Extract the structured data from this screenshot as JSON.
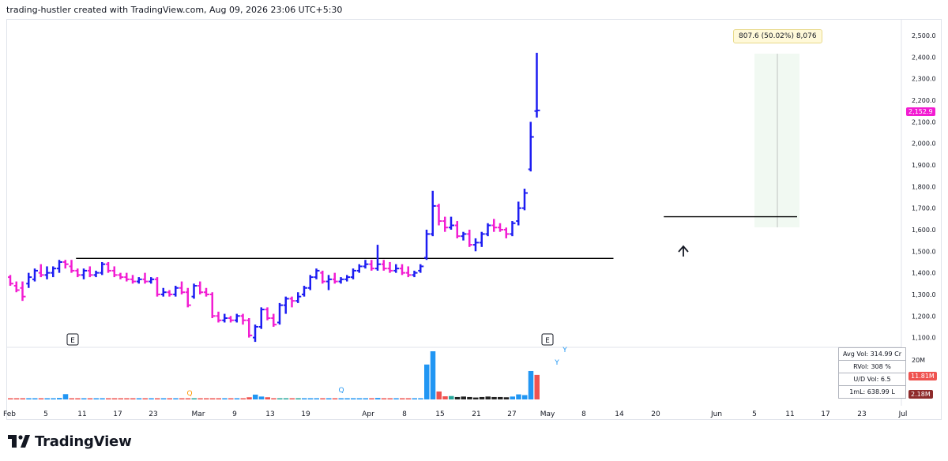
{
  "header": {
    "credit": "trading-hustler created with TradingView.com, Aug 09, 2026 23:06 UTC+5:30"
  },
  "brand": {
    "name": "TradingView"
  },
  "colors": {
    "up": "#1d1df2",
    "down": "#f21dd2",
    "resistance": "#000000",
    "vol_up": "#2196f3",
    "vol_down": "#ef5350",
    "vol_green": "#26a69a",
    "vol_dark": "#222222",
    "marker_q": "#ff9800"
  },
  "measure": {
    "label": "807.6 (50.02%) 8,076"
  },
  "stats": [
    {
      "label": "Avg Vol: 314.99 Cr"
    },
    {
      "label": "RVol: 308 %"
    },
    {
      "label": "U/D Vol: 6.5"
    },
    {
      "label": "1mL: 638.99 L"
    }
  ],
  "price_badges": {
    "last": "2,152.9",
    "vol_a": "11.81M",
    "vol_b": "2.18M"
  },
  "volume_axis": {
    "label": "20M"
  },
  "event_markers": [
    "E",
    "E"
  ],
  "volume_markers": [
    "Q",
    "Q",
    "Y",
    "Y"
  ],
  "chart_data": {
    "type": "ohlc",
    "title": "",
    "y_axis": {
      "ticks": [
        "2,500.0",
        "2,400.0",
        "2,300.0",
        "2,200.0",
        "2,100.0",
        "2,000.0",
        "1,900.0",
        "1,800.0",
        "1,700.0",
        "1,600.0",
        "1,500.0",
        "1,400.0",
        "1,300.0",
        "1,200.0",
        "1,100.0"
      ],
      "range": [
        1060,
        2560
      ]
    },
    "x_axis": {
      "ticks": [
        "Feb",
        "5",
        "11",
        "17",
        "23",
        "Mar",
        "9",
        "13",
        "19",
        "Apr",
        "8",
        "15",
        "21",
        "27",
        "May",
        "8",
        "14",
        "20",
        "Jun",
        "5",
        "11",
        "17",
        "23",
        "Jul"
      ]
    },
    "resistance_lines": [
      {
        "from_bar": 11,
        "to_bar": 98,
        "price": 1467
      },
      {
        "from_bar": 107,
        "to_bar": 128,
        "price": 1660
      }
    ],
    "bars": [
      {
        "o": 1380,
        "h": 1390,
        "l": 1340,
        "c": 1350
      },
      {
        "o": 1340,
        "h": 1360,
        "l": 1310,
        "c": 1320
      },
      {
        "o": 1330,
        "h": 1360,
        "l": 1270,
        "c": 1290
      },
      {
        "o": 1350,
        "h": 1400,
        "l": 1330,
        "c": 1380
      },
      {
        "o": 1370,
        "h": 1420,
        "l": 1360,
        "c": 1410
      },
      {
        "o": 1400,
        "h": 1440,
        "l": 1380,
        "c": 1390
      },
      {
        "o": 1390,
        "h": 1430,
        "l": 1370,
        "c": 1400
      },
      {
        "o": 1400,
        "h": 1430,
        "l": 1380,
        "c": 1420
      },
      {
        "o": 1420,
        "h": 1460,
        "l": 1400,
        "c": 1450
      },
      {
        "o": 1450,
        "h": 1460,
        "l": 1420,
        "c": 1440
      },
      {
        "o": 1430,
        "h": 1460,
        "l": 1400,
        "c": 1410
      },
      {
        "o": 1410,
        "h": 1420,
        "l": 1380,
        "c": 1390
      },
      {
        "o": 1390,
        "h": 1420,
        "l": 1370,
        "c": 1410
      },
      {
        "o": 1410,
        "h": 1430,
        "l": 1380,
        "c": 1390
      },
      {
        "o": 1390,
        "h": 1410,
        "l": 1380,
        "c": 1400
      },
      {
        "o": 1400,
        "h": 1450,
        "l": 1390,
        "c": 1440
      },
      {
        "o": 1440,
        "h": 1450,
        "l": 1400,
        "c": 1410
      },
      {
        "o": 1410,
        "h": 1430,
        "l": 1380,
        "c": 1390
      },
      {
        "o": 1390,
        "h": 1400,
        "l": 1370,
        "c": 1380
      },
      {
        "o": 1380,
        "h": 1400,
        "l": 1360,
        "c": 1370
      },
      {
        "o": 1370,
        "h": 1390,
        "l": 1350,
        "c": 1360
      },
      {
        "o": 1360,
        "h": 1380,
        "l": 1350,
        "c": 1370
      },
      {
        "o": 1370,
        "h": 1400,
        "l": 1350,
        "c": 1360
      },
      {
        "o": 1360,
        "h": 1380,
        "l": 1350,
        "c": 1370
      },
      {
        "o": 1370,
        "h": 1380,
        "l": 1290,
        "c": 1300
      },
      {
        "o": 1300,
        "h": 1330,
        "l": 1290,
        "c": 1310
      },
      {
        "o": 1310,
        "h": 1320,
        "l": 1290,
        "c": 1300
      },
      {
        "o": 1300,
        "h": 1340,
        "l": 1290,
        "c": 1330
      },
      {
        "o": 1330,
        "h": 1360,
        "l": 1300,
        "c": 1310
      },
      {
        "o": 1310,
        "h": 1330,
        "l": 1240,
        "c": 1250
      },
      {
        "o": 1290,
        "h": 1350,
        "l": 1280,
        "c": 1340
      },
      {
        "o": 1340,
        "h": 1360,
        "l": 1300,
        "c": 1310
      },
      {
        "o": 1310,
        "h": 1330,
        "l": 1290,
        "c": 1300
      },
      {
        "o": 1300,
        "h": 1310,
        "l": 1190,
        "c": 1200
      },
      {
        "o": 1200,
        "h": 1220,
        "l": 1170,
        "c": 1180
      },
      {
        "o": 1180,
        "h": 1210,
        "l": 1170,
        "c": 1190
      },
      {
        "o": 1190,
        "h": 1200,
        "l": 1170,
        "c": 1180
      },
      {
        "o": 1180,
        "h": 1210,
        "l": 1170,
        "c": 1200
      },
      {
        "o": 1200,
        "h": 1210,
        "l": 1160,
        "c": 1180
      },
      {
        "o": 1180,
        "h": 1190,
        "l": 1100,
        "c": 1110
      },
      {
        "o": 1100,
        "h": 1160,
        "l": 1080,
        "c": 1150
      },
      {
        "o": 1150,
        "h": 1240,
        "l": 1140,
        "c": 1230
      },
      {
        "o": 1230,
        "h": 1240,
        "l": 1180,
        "c": 1190
      },
      {
        "o": 1190,
        "h": 1210,
        "l": 1150,
        "c": 1160
      },
      {
        "o": 1170,
        "h": 1260,
        "l": 1160,
        "c": 1250
      },
      {
        "o": 1250,
        "h": 1290,
        "l": 1210,
        "c": 1280
      },
      {
        "o": 1280,
        "h": 1290,
        "l": 1240,
        "c": 1270
      },
      {
        "o": 1270,
        "h": 1310,
        "l": 1260,
        "c": 1290
      },
      {
        "o": 1300,
        "h": 1340,
        "l": 1290,
        "c": 1330
      },
      {
        "o": 1330,
        "h": 1390,
        "l": 1320,
        "c": 1380
      },
      {
        "o": 1380,
        "h": 1420,
        "l": 1370,
        "c": 1410
      },
      {
        "o": 1400,
        "h": 1410,
        "l": 1350,
        "c": 1360
      },
      {
        "o": 1360,
        "h": 1390,
        "l": 1320,
        "c": 1370
      },
      {
        "o": 1370,
        "h": 1400,
        "l": 1350,
        "c": 1360
      },
      {
        "o": 1360,
        "h": 1380,
        "l": 1350,
        "c": 1370
      },
      {
        "o": 1370,
        "h": 1390,
        "l": 1360,
        "c": 1380
      },
      {
        "o": 1380,
        "h": 1420,
        "l": 1370,
        "c": 1410
      },
      {
        "o": 1410,
        "h": 1440,
        "l": 1400,
        "c": 1430
      },
      {
        "o": 1430,
        "h": 1460,
        "l": 1420,
        "c": 1440
      },
      {
        "o": 1440,
        "h": 1460,
        "l": 1410,
        "c": 1420
      },
      {
        "o": 1420,
        "h": 1530,
        "l": 1410,
        "c": 1440
      },
      {
        "o": 1440,
        "h": 1460,
        "l": 1410,
        "c": 1420
      },
      {
        "o": 1420,
        "h": 1450,
        "l": 1400,
        "c": 1410
      },
      {
        "o": 1410,
        "h": 1440,
        "l": 1400,
        "c": 1420
      },
      {
        "o": 1420,
        "h": 1440,
        "l": 1390,
        "c": 1400
      },
      {
        "o": 1400,
        "h": 1430,
        "l": 1380,
        "c": 1390
      },
      {
        "o": 1390,
        "h": 1410,
        "l": 1380,
        "c": 1400
      },
      {
        "o": 1410,
        "h": 1440,
        "l": 1400,
        "c": 1430
      },
      {
        "o": 1470,
        "h": 1600,
        "l": 1460,
        "c": 1580
      },
      {
        "o": 1580,
        "h": 1780,
        "l": 1570,
        "c": 1710
      },
      {
        "o": 1710,
        "h": 1720,
        "l": 1620,
        "c": 1640
      },
      {
        "o": 1640,
        "h": 1660,
        "l": 1590,
        "c": 1610
      },
      {
        "o": 1610,
        "h": 1660,
        "l": 1600,
        "c": 1620
      },
      {
        "o": 1620,
        "h": 1640,
        "l": 1560,
        "c": 1570
      },
      {
        "o": 1570,
        "h": 1590,
        "l": 1550,
        "c": 1580
      },
      {
        "o": 1580,
        "h": 1600,
        "l": 1520,
        "c": 1530
      },
      {
        "o": 1530,
        "h": 1560,
        "l": 1500,
        "c": 1540
      },
      {
        "o": 1540,
        "h": 1590,
        "l": 1520,
        "c": 1580
      },
      {
        "o": 1580,
        "h": 1630,
        "l": 1570,
        "c": 1620
      },
      {
        "o": 1620,
        "h": 1650,
        "l": 1590,
        "c": 1610
      },
      {
        "o": 1610,
        "h": 1630,
        "l": 1590,
        "c": 1600
      },
      {
        "o": 1600,
        "h": 1610,
        "l": 1560,
        "c": 1580
      },
      {
        "o": 1580,
        "h": 1640,
        "l": 1570,
        "c": 1630
      },
      {
        "o": 1640,
        "h": 1730,
        "l": 1620,
        "c": 1700
      },
      {
        "o": 1700,
        "h": 1790,
        "l": 1690,
        "c": 1770
      },
      {
        "o": 1880,
        "h": 2100,
        "l": 1870,
        "c": 2030
      },
      {
        "o": 2150,
        "h": 2420,
        "l": 2120,
        "c": 2152.9
      }
    ],
    "volume": [
      0.3,
      0.3,
      0.3,
      0.4,
      0.3,
      0.3,
      0.4,
      0.3,
      0.6,
      2.2,
      0.3,
      0.3,
      0.3,
      0.3,
      0.4,
      0.3,
      0.3,
      0.3,
      0.3,
      0.3,
      0.3,
      0.3,
      0.3,
      0.3,
      0.3,
      0.3,
      0.3,
      0.3,
      0.3,
      0.3,
      0.3,
      0.3,
      0.3,
      0.3,
      0.3,
      0.3,
      0.3,
      0.3,
      0.4,
      0.9,
      2.0,
      1.2,
      0.9,
      0.5,
      0.3,
      0.3,
      0.3,
      0.3,
      0.3,
      0.3,
      0.3,
      0.3,
      0.3,
      0.3,
      0.3,
      0.3,
      0.3,
      0.3,
      0.3,
      0.4,
      0.6,
      0.3,
      0.3,
      0.3,
      0.3,
      0.3,
      0.3,
      0.4,
      14.5,
      20.0,
      3.3,
      1.3,
      1.4,
      1.0,
      1.2,
      1.0,
      0.8,
      1.0,
      1.2,
      1.0,
      1.0,
      0.9,
      1.2,
      2.1,
      1.8,
      11.81,
      10.2
    ],
    "volume_colors": [
      "#ef5350",
      "#ef5350",
      "#ef5350",
      "#2196f3",
      "#2196f3",
      "#ef5350",
      "#2196f3",
      "#2196f3",
      "#2196f3",
      "#2196f3",
      "#ef5350",
      "#ef5350",
      "#2196f3",
      "#ef5350",
      "#2196f3",
      "#2196f3",
      "#ef5350",
      "#ef5350",
      "#ef5350",
      "#ef5350",
      "#ef5350",
      "#2196f3",
      "#ef5350",
      "#2196f3",
      "#ef5350",
      "#2196f3",
      "#ef5350",
      "#2196f3",
      "#ef5350",
      "#ef5350",
      "#26a69a",
      "#ef5350",
      "#ef5350",
      "#ef5350",
      "#ef5350",
      "#2196f3",
      "#ef5350",
      "#2196f3",
      "#ef5350",
      "#ef5350",
      "#2196f3",
      "#2196f3",
      "#ef5350",
      "#ef5350",
      "#26a69a",
      "#26a69a",
      "#ef5350",
      "#26a69a",
      "#2196f3",
      "#2196f3",
      "#2196f3",
      "#ef5350",
      "#2196f3",
      "#ef5350",
      "#2196f3",
      "#2196f3",
      "#2196f3",
      "#2196f3",
      "#2196f3",
      "#ef5350",
      "#2196f3",
      "#ef5350",
      "#ef5350",
      "#2196f3",
      "#ef5350",
      "#ef5350",
      "#2196f3",
      "#2196f3",
      "#2196f3",
      "#2196f3",
      "#ef5350",
      "#ef5350",
      "#26a69a",
      "#222222",
      "#222222",
      "#222222",
      "#222222",
      "#222222",
      "#222222",
      "#222222",
      "#222222",
      "#222222",
      "#2196f3",
      "#2196f3",
      "#2196f3",
      "#2196f3",
      "#ef5350"
    ]
  }
}
